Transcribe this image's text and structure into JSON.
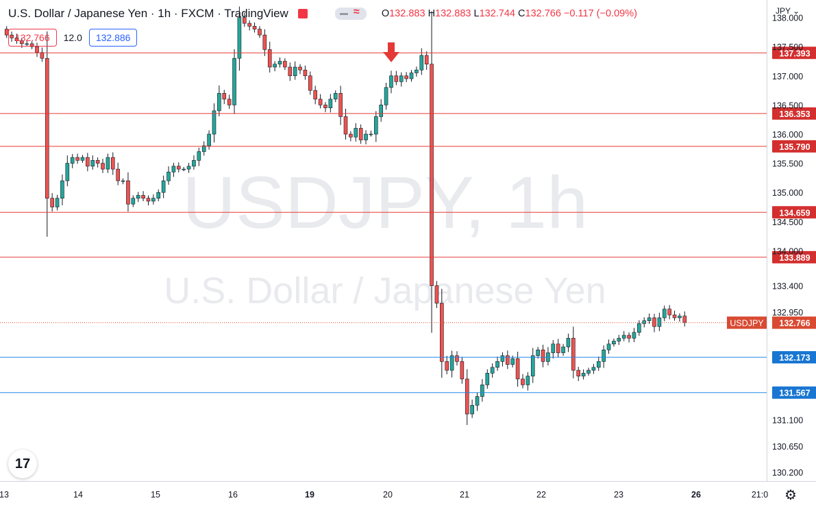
{
  "header": {
    "symbol_line": "U.S. Dollar / Japanese Yen · 1h · FXCM · TradingView",
    "ohlc": {
      "o_label": "O",
      "o": "132.883",
      "h_label": "H",
      "h": "132.883",
      "l_label": "L",
      "l": "132.744",
      "c_label": "C",
      "c": "132.766",
      "change": "−0.117 (−0.09%)"
    },
    "sell_price": "132.766",
    "spread": "12.0",
    "buy_price": "132.886",
    "currency": "JPY"
  },
  "watermark": {
    "ticker": "USDJPY, 1h",
    "name": "U.S. Dollar / Japanese Yen"
  },
  "colors": {
    "up": "#26a69a",
    "down": "#ef5350",
    "candle": "#131722",
    "resistance": "#e53935",
    "support": "#1e88e5",
    "label_red": "#d32f2f",
    "label_blue": "#1976d2",
    "last": "#d84a32"
  },
  "chart_data": {
    "type": "candlestick",
    "ylim": [
      130.05,
      138.3
    ],
    "y_ticks": [
      "138.000",
      "137.500",
      "137.000",
      "136.500",
      "136.000",
      "135.500",
      "135.000",
      "134.500",
      "134.000",
      "133.400",
      "132.950",
      "131.100",
      "130.650",
      "130.200"
    ],
    "x_ticks": [
      "13",
      "14",
      "15",
      "16",
      "19",
      "20",
      "21",
      "22",
      "23",
      "26",
      "21:0"
    ],
    "horizontal_lines": [
      {
        "label": "137.393",
        "value": 137.393,
        "kind": "resistance"
      },
      {
        "label": "136.353",
        "value": 136.353,
        "kind": "resistance"
      },
      {
        "label": "135.790",
        "value": 135.79,
        "kind": "resistance"
      },
      {
        "label": "134.659",
        "value": 134.659,
        "kind": "resistance"
      },
      {
        "label": "133.889",
        "value": 133.889,
        "kind": "resistance"
      },
      {
        "label": "132.173",
        "value": 132.173,
        "kind": "support"
      },
      {
        "label": "131.567",
        "value": 131.567,
        "kind": "support"
      }
    ],
    "last_price": {
      "symbol": "USDJPY",
      "label": "132.766",
      "value": 132.766
    },
    "marker": {
      "type": "down-arrow",
      "value": 137.8
    },
    "series": [
      {
        "path": [
          137.8,
          137.7,
          137.65,
          137.6,
          137.55,
          137.55,
          137.5,
          137.4,
          137.3,
          134.9,
          134.75,
          134.9,
          135.2,
          135.5,
          135.6,
          135.55,
          135.6,
          135.45,
          135.55,
          135.5,
          135.4,
          135.6,
          135.4,
          135.2,
          135.2,
          134.8,
          134.9,
          134.95,
          134.9,
          134.85,
          134.9,
          135.0,
          135.2,
          135.35,
          135.45,
          135.4,
          135.4,
          135.45,
          135.55,
          135.7,
          135.8,
          136.0,
          136.4,
          136.7,
          136.6,
          136.5,
          137.3,
          138.0,
          137.9,
          137.85,
          137.8,
          137.7,
          137.45,
          137.15,
          137.2,
          137.25,
          137.15,
          137.0,
          137.15,
          137.1,
          137.0,
          136.75,
          136.6,
          136.5,
          136.45,
          136.6,
          136.7,
          136.3,
          136.0,
          135.95,
          136.1,
          135.9,
          136.0,
          136.0,
          136.3,
          136.5,
          136.8,
          137.0,
          136.9,
          137.0,
          136.95,
          137.05,
          137.1,
          137.35,
          137.2,
          133.4,
          133.1,
          132.1,
          131.95,
          132.2,
          132.1,
          131.8,
          131.2,
          131.35,
          131.5,
          131.7,
          131.9,
          132.0,
          132.1,
          132.2,
          132.05,
          132.15,
          131.8,
          131.7,
          131.85,
          132.2,
          132.3,
          132.1,
          132.25,
          132.4,
          132.25,
          132.35,
          132.5,
          131.95,
          131.85,
          131.9,
          131.95,
          132.0,
          132.1,
          132.3,
          132.4,
          132.45,
          132.5,
          132.55,
          132.5,
          132.6,
          132.75,
          132.8,
          132.85,
          132.7,
          132.85,
          133.0,
          132.9,
          132.85,
          132.88,
          132.77
        ]
      }
    ]
  }
}
